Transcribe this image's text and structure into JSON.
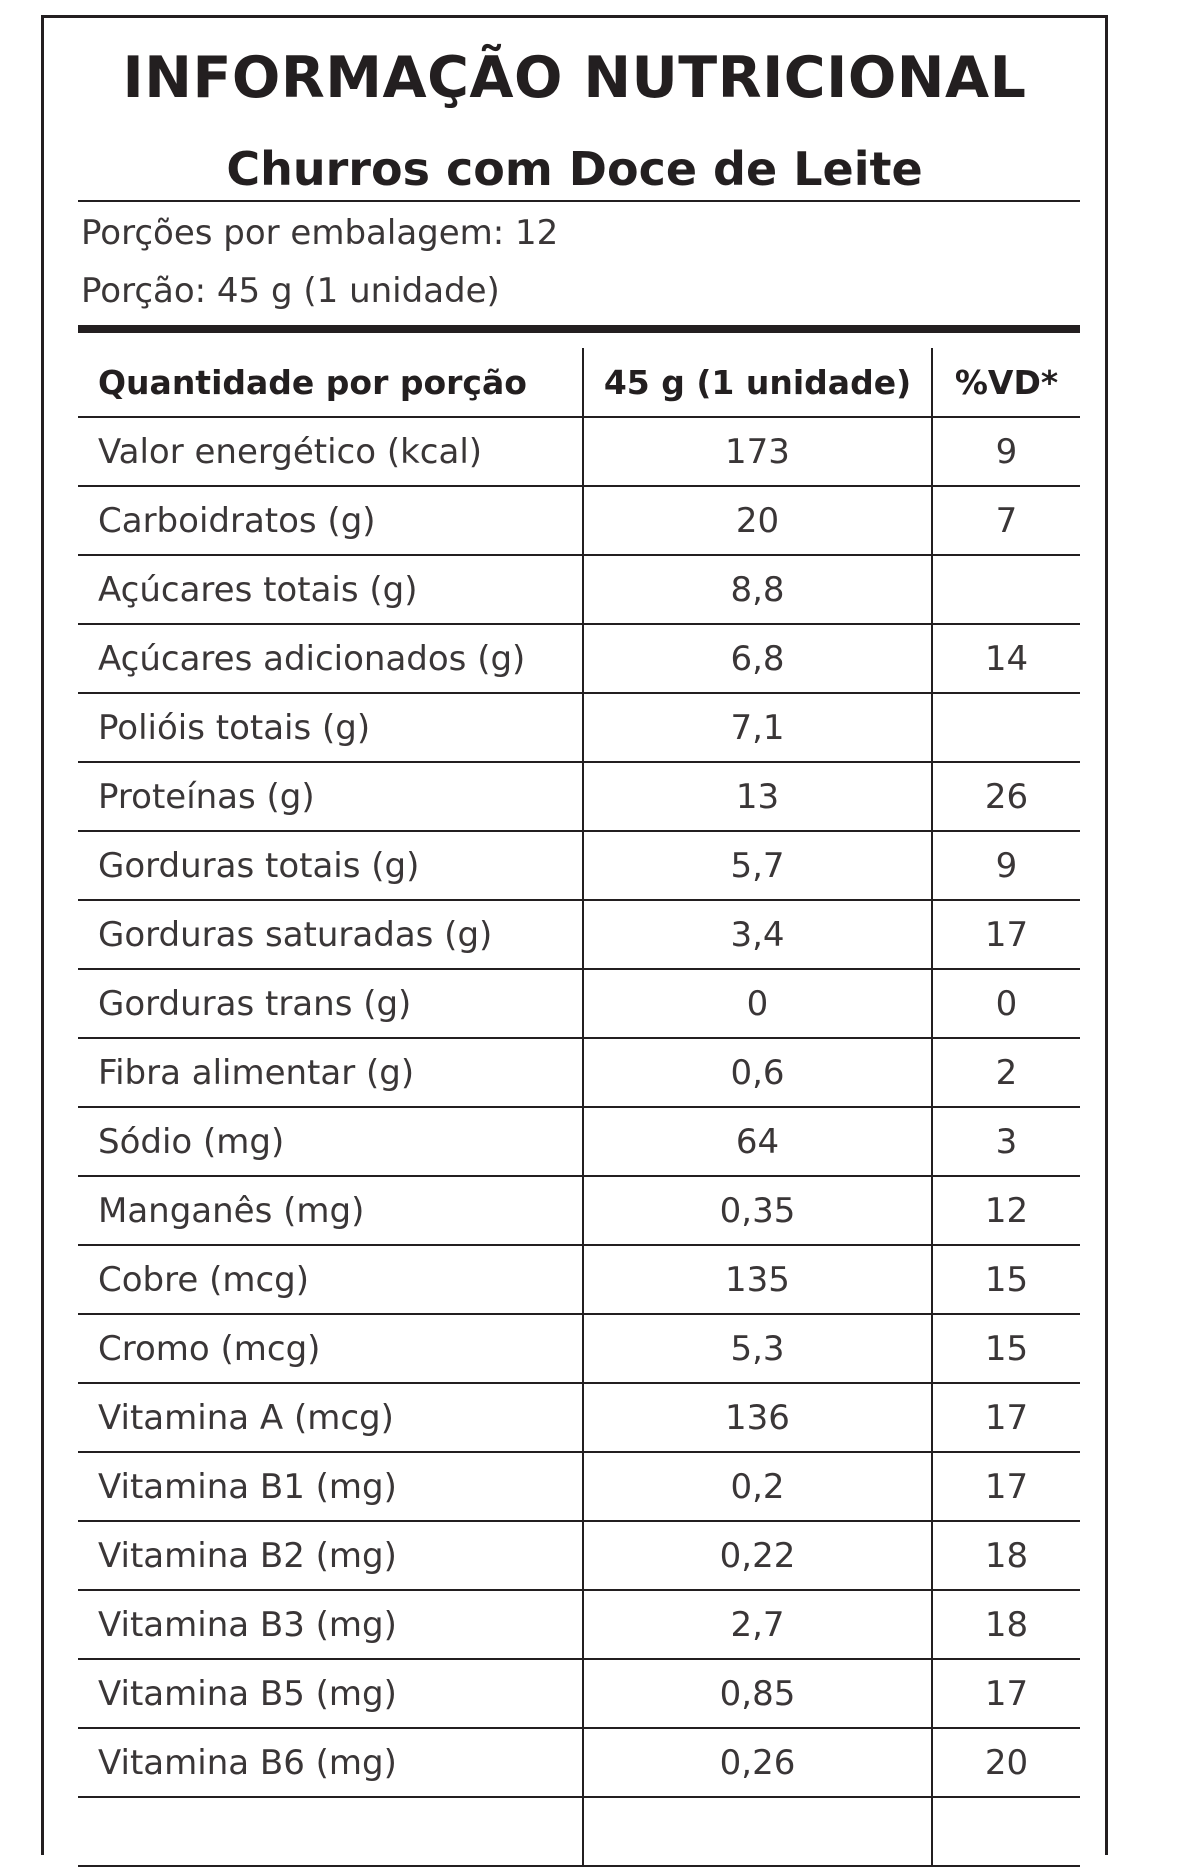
{
  "label": {
    "title": "INFORMAÇÃO NUTRICIONAL",
    "product_name": "Churros com Doce de Leite",
    "servings_per_package": "Porções por embalagem: 12",
    "serving_size": "Porção: 45 g (1 unidade)"
  },
  "table": {
    "headers": {
      "nutrient": "Quantidade por porção",
      "amount": "45 g (1 unidade)",
      "dv": "%VD*"
    },
    "rows": [
      {
        "nutrient": "Valor energético (kcal)",
        "amount": "173",
        "dv": "9"
      },
      {
        "nutrient": "Carboidratos (g)",
        "amount": "20",
        "dv": "7"
      },
      {
        "nutrient": "Açúcares totais (g)",
        "amount": "8,8",
        "dv": ""
      },
      {
        "nutrient": "Açúcares adicionados (g)",
        "amount": "6,8",
        "dv": "14"
      },
      {
        "nutrient": "Polióis totais (g)",
        "amount": "7,1",
        "dv": ""
      },
      {
        "nutrient": "Proteínas (g)",
        "amount": "13",
        "dv": "26"
      },
      {
        "nutrient": "Gorduras totais (g)",
        "amount": "5,7",
        "dv": "9"
      },
      {
        "nutrient": "Gorduras saturadas (g)",
        "amount": "3,4",
        "dv": "17"
      },
      {
        "nutrient": "Gorduras trans (g)",
        "amount": "0",
        "dv": "0"
      },
      {
        "nutrient": "Fibra alimentar (g)",
        "amount": "0,6",
        "dv": "2"
      },
      {
        "nutrient": "Sódio (mg)",
        "amount": "64",
        "dv": "3"
      },
      {
        "nutrient": "Manganês (mg)",
        "amount": "0,35",
        "dv": "12"
      },
      {
        "nutrient": "Cobre (mcg)",
        "amount": "135",
        "dv": "15"
      },
      {
        "nutrient": "Cromo (mcg)",
        "amount": "5,3",
        "dv": "15"
      },
      {
        "nutrient": "Vitamina A (mcg)",
        "amount": "136",
        "dv": "17"
      },
      {
        "nutrient": "Vitamina B1 (mg)",
        "amount": "0,2",
        "dv": "17"
      },
      {
        "nutrient": "Vitamina B2 (mg)",
        "amount": "0,22",
        "dv": "18"
      },
      {
        "nutrient": "Vitamina B3 (mg)",
        "amount": "2,7",
        "dv": "18"
      },
      {
        "nutrient": "Vitamina B5 (mg)",
        "amount": "0,85",
        "dv": "17"
      },
      {
        "nutrient": "Vitamina B6 (mg)",
        "amount": "0,26",
        "dv": "20"
      }
    ]
  }
}
